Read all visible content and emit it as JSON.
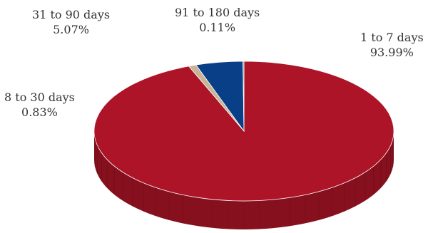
{
  "chart_data": {
    "type": "pie",
    "style": "3d",
    "title": "",
    "slices": [
      {
        "label": "1 to 7 days",
        "value": 93.99,
        "display": "93.99%",
        "color": "#ad1427"
      },
      {
        "label": "8 to 30 days",
        "value": 0.83,
        "display": "0.83%",
        "color": "#c9b497"
      },
      {
        "label": "31 to 90 days",
        "value": 5.07,
        "display": "5.07%",
        "color": "#083f87"
      },
      {
        "label": "91 to 180 days",
        "value": 0.11,
        "display": "0.11%",
        "color": "#7a8a8f"
      }
    ]
  }
}
